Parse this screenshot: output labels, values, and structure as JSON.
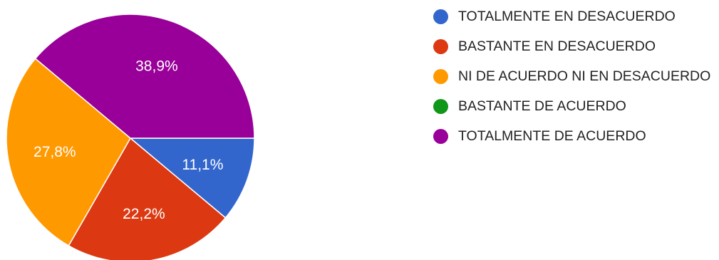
{
  "chart_data": {
    "type": "pie",
    "categories": [
      "TOTALMENTE EN DESACUERDO",
      "BASTANTE EN DESACUERDO",
      "NI DE ACUERDO NI EN DESACUERDO",
      "BASTANTE DE ACUERDO",
      "TOTALMENTE DE ACUERDO"
    ],
    "values": [
      11.1,
      22.2,
      27.8,
      0,
      38.9
    ],
    "value_labels": [
      "11,1%",
      "22,2%",
      "27,8%",
      "",
      "38,9%"
    ],
    "colors": [
      "#3366cc",
      "#dc3912",
      "#ff9900",
      "#109618",
      "#990099"
    ],
    "legend_position": "right"
  }
}
